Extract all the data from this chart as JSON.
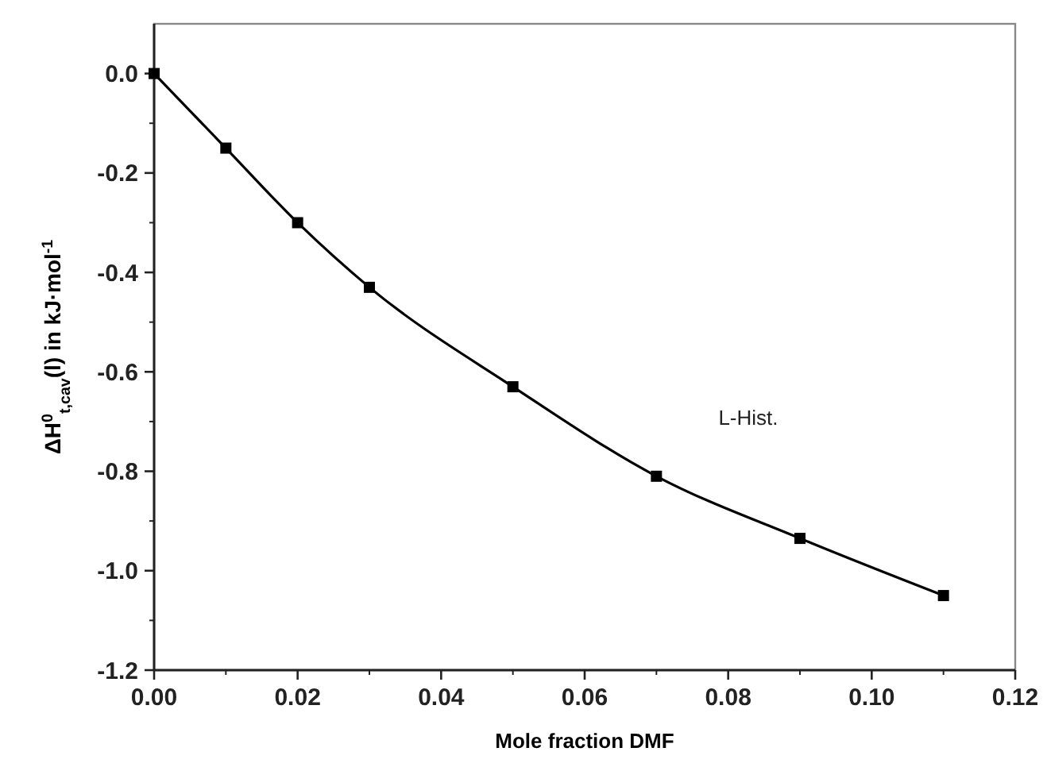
{
  "chart_data": {
    "type": "line",
    "xlabel": "Mole fraction DMF",
    "ylabel": "ΔH$^{0}$$_{t,cav}$(l) in kJ·mol$^{-1}$",
    "x": [
      0,
      0.01,
      0.02,
      0.03,
      0.05,
      0.07,
      0.09,
      0.11
    ],
    "series": [
      {
        "color": "#000000",
        "values": [
          0,
          -0.15,
          -0.3,
          -0.43,
          -0.63,
          -0.81,
          -0.935,
          -1.05
        ]
      }
    ],
    "marker": "square",
    "line_style": "solid",
    "xlim": [
      0,
      0.12
    ],
    "xticks": [
      {
        "value": 0,
        "label": "0.00"
      },
      {
        "value": 0.02,
        "label": "0.02"
      },
      {
        "value": 0.04,
        "label": "0.04"
      },
      {
        "value": 0.06,
        "label": "0.06"
      },
      {
        "value": 0.08,
        "label": "0.08"
      },
      {
        "value": 0.1,
        "label": "0.10"
      },
      {
        "value": 0.12,
        "label": "0.12"
      }
    ],
    "ylim": [
      -1.2,
      0.1
    ],
    "yticks": [
      {
        "value": -1.2,
        "label": "-1.2"
      },
      {
        "value": -1,
        "label": "-1.0"
      },
      {
        "value": -0.8,
        "label": "-0.8"
      },
      {
        "value": -0.6,
        "label": "-0.6"
      },
      {
        "value": -0.4,
        "label": "-0.4"
      },
      {
        "value": -0.2,
        "label": "-0.2"
      },
      {
        "value": 0,
        "label": "0.0"
      }
    ],
    "annotations": [
      "L-Hist."
    ]
  }
}
